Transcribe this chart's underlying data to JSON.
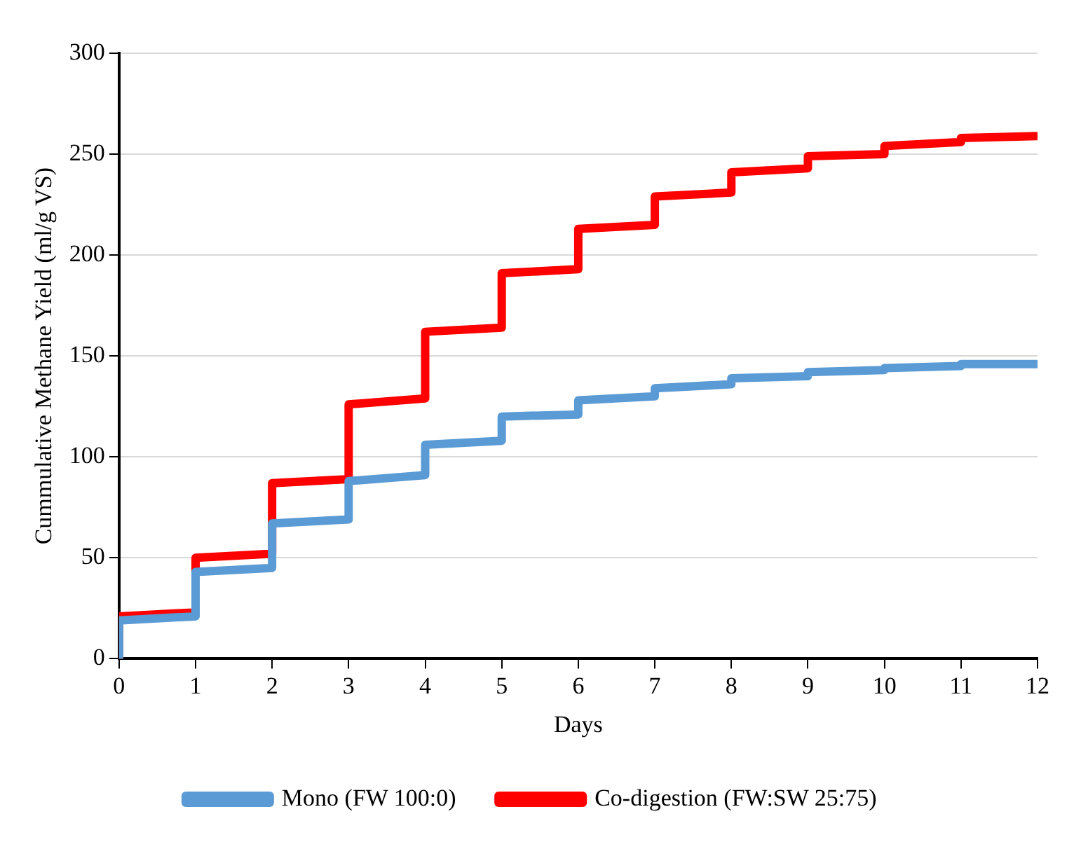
{
  "chart_data": {
    "type": "line",
    "xlabel": "Days",
    "ylabel": "Cummulative Methane Yield (ml/g VS)",
    "xlim": [
      0,
      12
    ],
    "xticks": [
      0,
      1,
      2,
      3,
      4,
      5,
      6,
      7,
      8,
      9,
      10,
      11,
      12
    ],
    "ylim": [
      0,
      300
    ],
    "yticks": [
      0,
      50,
      100,
      150,
      200,
      250,
      300
    ],
    "grid": "y",
    "legend": "bottom",
    "marker": "none",
    "line_style": "solid",
    "series": [
      {
        "name": "Mono (FW 100:0)",
        "color": "#5b9bd5",
        "x": [
          0,
          0,
          1,
          1,
          2,
          2,
          3,
          3,
          4,
          4,
          5,
          5,
          6,
          6,
          7,
          7,
          8,
          8,
          9,
          9,
          10,
          10,
          11,
          11,
          12
        ],
        "values": [
          0,
          19,
          21,
          43,
          45,
          67,
          69,
          88,
          91,
          106,
          108,
          120,
          121,
          128,
          130,
          134,
          136,
          139,
          140,
          142,
          143,
          144,
          145,
          146,
          146
        ]
      },
      {
        "name": "Co-digestion (FW:SW 25:75)",
        "color": "#ff0000",
        "x": [
          0,
          0,
          1,
          1,
          2,
          2,
          3,
          3,
          4,
          4,
          5,
          5,
          6,
          6,
          7,
          7,
          8,
          8,
          9,
          9,
          10,
          10,
          11,
          11,
          12
        ],
        "values": [
          0,
          21,
          23,
          50,
          52,
          87,
          89,
          126,
          129,
          162,
          164,
          191,
          193,
          213,
          215,
          229,
          231,
          241,
          243,
          249,
          250,
          254,
          256,
          258,
          259
        ]
      }
    ]
  }
}
